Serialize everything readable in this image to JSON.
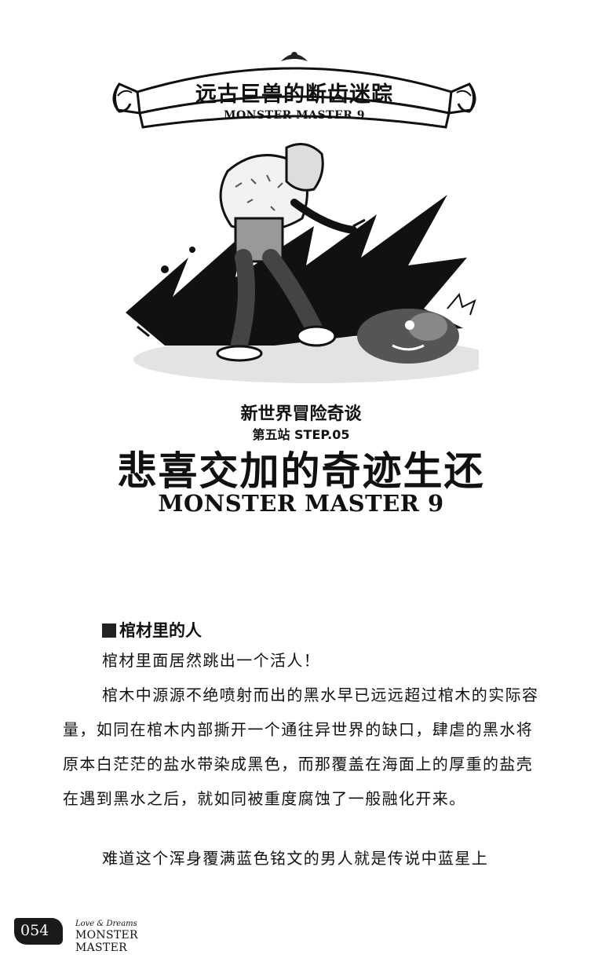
{
  "banner": {
    "title": "远古巨兽的断齿迷踪",
    "subtitle": "MONSTER MASTER 9"
  },
  "illustration": {
    "description_icon": "monster-illustration"
  },
  "heading": {
    "series": "新世界冒险奇谈",
    "step": "第五站 STEP.05",
    "title": "悲喜交加的奇迹生还",
    "title_en": "MONSTER MASTER 9"
  },
  "section": {
    "title": "棺材里的人",
    "paragraphs": [
      "棺材里面居然跳出一个活人！",
      "棺木中源源不绝喷射而出的黑水早已远远超过棺木的实际容量，如同在棺木内部撕开一个通往异世界的缺口，肆虐的黑水将原本白茫茫的盐水带染成黑色，而那覆盖在海面上的厚重的盐壳在遇到黑水之后，就如同被重度腐蚀了一般融化开来。",
      "难道这个浑身覆满蓝色铭文的男人就是传说中蓝星上"
    ]
  },
  "footer": {
    "page_number": "054",
    "brand_line1": "Love & Dreams",
    "brand_line2": "MONSTER MASTER"
  }
}
